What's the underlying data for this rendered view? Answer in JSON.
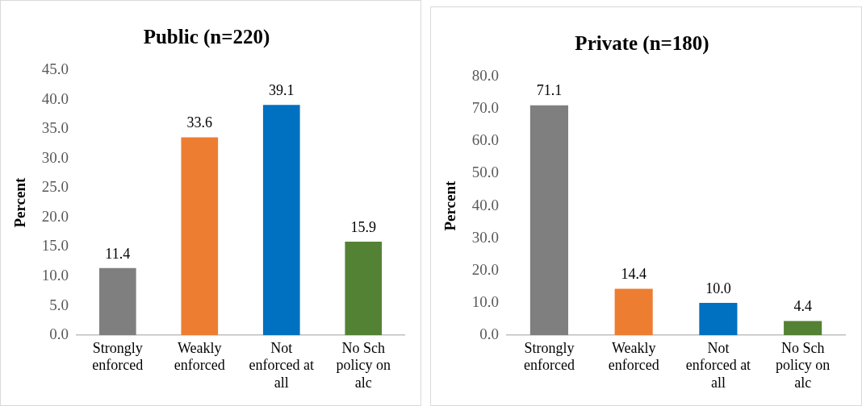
{
  "chart_data": [
    {
      "type": "bar",
      "title": "Public (n=220)",
      "ylabel": "Percent",
      "categories": [
        "Strongly enforced",
        "Weakly enforced",
        "Not enforced at all",
        "No Sch policy on alc"
      ],
      "values": [
        11.4,
        33.6,
        39.1,
        15.9
      ],
      "value_labels": [
        "11.4",
        "33.6",
        "39.1",
        "15.9"
      ],
      "colors": [
        "#7f7f7f",
        "#ed7d31",
        "#0070c0",
        "#548235"
      ],
      "ylim": [
        0,
        45
      ],
      "yticks": [
        {
          "value": 0,
          "label": "0.0"
        },
        {
          "value": 5,
          "label": "5.0"
        },
        {
          "value": 10,
          "label": "10.0"
        },
        {
          "value": 15,
          "label": "15.0"
        },
        {
          "value": 20,
          "label": "20.0"
        },
        {
          "value": 25,
          "label": "25.0"
        },
        {
          "value": 30,
          "label": "30.0"
        },
        {
          "value": 35,
          "label": "35.0"
        },
        {
          "value": 40,
          "label": "40.0"
        },
        {
          "value": 45,
          "label": "45.0"
        }
      ],
      "grid": false,
      "legend": false
    },
    {
      "type": "bar",
      "title": "Private (n=180)",
      "ylabel": "Percent",
      "categories": [
        "Strongly enforced",
        "Weakly enforced",
        "Not enforced at all",
        "No Sch policy on alc"
      ],
      "values": [
        71.1,
        14.4,
        10.0,
        4.4
      ],
      "value_labels": [
        "71.1",
        "14.4",
        "10.0",
        "4.4"
      ],
      "colors": [
        "#7f7f7f",
        "#ed7d31",
        "#0070c0",
        "#548235"
      ],
      "ylim": [
        0,
        80
      ],
      "yticks": [
        {
          "value": 0,
          "label": "0.0"
        },
        {
          "value": 10,
          "label": "10.0"
        },
        {
          "value": 20,
          "label": "20.0"
        },
        {
          "value": 30,
          "label": "30.0"
        },
        {
          "value": 40,
          "label": "40.0"
        },
        {
          "value": 50,
          "label": "50.0"
        },
        {
          "value": 60,
          "label": "60.0"
        },
        {
          "value": 70,
          "label": "70.0"
        },
        {
          "value": 80,
          "label": "80.0"
        }
      ],
      "grid": false,
      "legend": false
    }
  ]
}
